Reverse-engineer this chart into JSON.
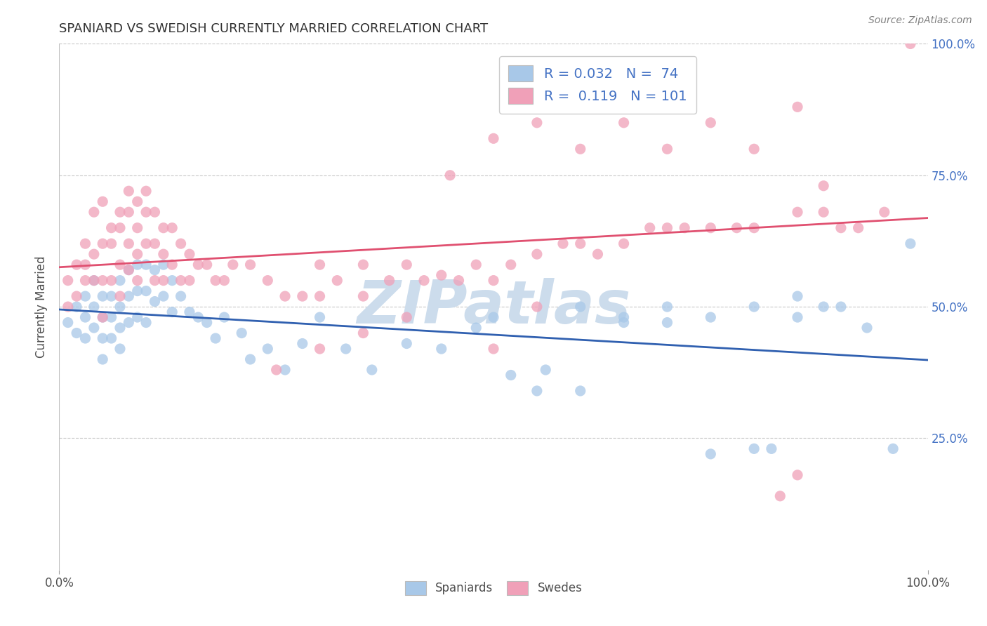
{
  "title": "SPANIARD VS SWEDISH CURRENTLY MARRIED CORRELATION CHART",
  "source": "Source: ZipAtlas.com",
  "ylabel": "Currently Married",
  "xlim": [
    0,
    1
  ],
  "ylim": [
    0,
    1
  ],
  "spaniard_color": "#a8c8e8",
  "swede_color": "#f0a0b8",
  "spaniard_line_color": "#3060b0",
  "swede_line_color": "#e05070",
  "watermark_color": "#ccdcec",
  "legend_label1": "Spaniards",
  "legend_label2": "Swedes",
  "title_color": "#303030",
  "grid_color": "#c8c8c8",
  "tick_label_color": "#4472c4",
  "spaniard_R": 0.032,
  "spaniard_N": 74,
  "swede_R": 0.119,
  "swede_N": 101,
  "spaniard_x": [
    0.01,
    0.02,
    0.02,
    0.03,
    0.03,
    0.03,
    0.04,
    0.04,
    0.04,
    0.05,
    0.05,
    0.05,
    0.05,
    0.06,
    0.06,
    0.06,
    0.07,
    0.07,
    0.07,
    0.07,
    0.08,
    0.08,
    0.08,
    0.09,
    0.09,
    0.09,
    0.1,
    0.1,
    0.1,
    0.11,
    0.11,
    0.12,
    0.12,
    0.13,
    0.13,
    0.14,
    0.15,
    0.16,
    0.17,
    0.18,
    0.19,
    0.21,
    0.22,
    0.24,
    0.26,
    0.28,
    0.3,
    0.33,
    0.36,
    0.4,
    0.44,
    0.48,
    0.52,
    0.56,
    0.6,
    0.65,
    0.7,
    0.75,
    0.8,
    0.82,
    0.85,
    0.88,
    0.9,
    0.93,
    0.96,
    0.98,
    0.5,
    0.55,
    0.6,
    0.65,
    0.7,
    0.75,
    0.8,
    0.85
  ],
  "spaniard_y": [
    0.47,
    0.5,
    0.45,
    0.52,
    0.48,
    0.44,
    0.55,
    0.5,
    0.46,
    0.52,
    0.48,
    0.44,
    0.4,
    0.52,
    0.48,
    0.44,
    0.55,
    0.5,
    0.46,
    0.42,
    0.57,
    0.52,
    0.47,
    0.58,
    0.53,
    0.48,
    0.58,
    0.53,
    0.47,
    0.57,
    0.51,
    0.58,
    0.52,
    0.55,
    0.49,
    0.52,
    0.49,
    0.48,
    0.47,
    0.44,
    0.48,
    0.45,
    0.4,
    0.42,
    0.38,
    0.43,
    0.48,
    0.42,
    0.38,
    0.43,
    0.42,
    0.46,
    0.37,
    0.38,
    0.5,
    0.48,
    0.5,
    0.48,
    0.5,
    0.23,
    0.48,
    0.5,
    0.5,
    0.46,
    0.23,
    0.62,
    0.48,
    0.34,
    0.34,
    0.47,
    0.47,
    0.22,
    0.23,
    0.52
  ],
  "swede_x": [
    0.01,
    0.01,
    0.02,
    0.02,
    0.03,
    0.03,
    0.03,
    0.04,
    0.04,
    0.04,
    0.05,
    0.05,
    0.05,
    0.05,
    0.06,
    0.06,
    0.06,
    0.07,
    0.07,
    0.07,
    0.07,
    0.08,
    0.08,
    0.08,
    0.08,
    0.09,
    0.09,
    0.09,
    0.09,
    0.1,
    0.1,
    0.1,
    0.11,
    0.11,
    0.11,
    0.12,
    0.12,
    0.12,
    0.13,
    0.13,
    0.14,
    0.14,
    0.15,
    0.15,
    0.16,
    0.17,
    0.18,
    0.19,
    0.2,
    0.22,
    0.24,
    0.26,
    0.28,
    0.3,
    0.3,
    0.32,
    0.35,
    0.35,
    0.38,
    0.4,
    0.42,
    0.44,
    0.46,
    0.48,
    0.5,
    0.52,
    0.55,
    0.58,
    0.6,
    0.62,
    0.65,
    0.68,
    0.7,
    0.72,
    0.75,
    0.78,
    0.8,
    0.85,
    0.88,
    0.9,
    0.92,
    0.95,
    0.98,
    0.45,
    0.5,
    0.55,
    0.6,
    0.65,
    0.7,
    0.75,
    0.8,
    0.85,
    0.88,
    0.25,
    0.3,
    0.35,
    0.4,
    0.83,
    0.5,
    0.55,
    0.85
  ],
  "swede_y": [
    0.5,
    0.55,
    0.52,
    0.58,
    0.55,
    0.62,
    0.58,
    0.6,
    0.68,
    0.55,
    0.62,
    0.7,
    0.55,
    0.48,
    0.65,
    0.62,
    0.55,
    0.68,
    0.65,
    0.58,
    0.52,
    0.72,
    0.68,
    0.62,
    0.57,
    0.7,
    0.65,
    0.6,
    0.55,
    0.72,
    0.68,
    0.62,
    0.68,
    0.62,
    0.55,
    0.65,
    0.6,
    0.55,
    0.65,
    0.58,
    0.62,
    0.55,
    0.6,
    0.55,
    0.58,
    0.58,
    0.55,
    0.55,
    0.58,
    0.58,
    0.55,
    0.52,
    0.52,
    0.58,
    0.52,
    0.55,
    0.58,
    0.52,
    0.55,
    0.58,
    0.55,
    0.56,
    0.55,
    0.58,
    0.55,
    0.58,
    0.6,
    0.62,
    0.62,
    0.6,
    0.62,
    0.65,
    0.65,
    0.65,
    0.65,
    0.65,
    0.65,
    0.68,
    0.68,
    0.65,
    0.65,
    0.68,
    1.0,
    0.75,
    0.82,
    0.85,
    0.8,
    0.85,
    0.8,
    0.85,
    0.8,
    0.88,
    0.73,
    0.38,
    0.42,
    0.45,
    0.48,
    0.14,
    0.42,
    0.5,
    0.18
  ]
}
